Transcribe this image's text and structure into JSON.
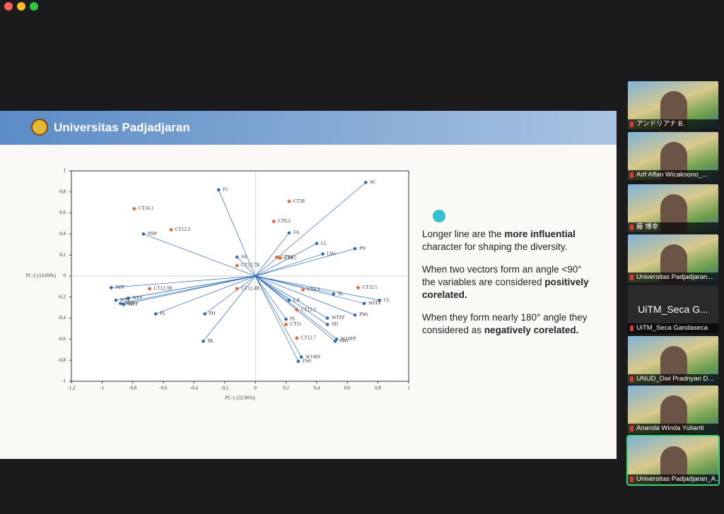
{
  "slide": {
    "header": "Universitas Padjadjaran",
    "paragraphs": [
      [
        {
          "text": "Longer line are the ",
          "bold": false
        },
        {
          "text": "more influential",
          "bold": true
        },
        {
          "text": " character for shaping the diversity.",
          "bold": false
        }
      ],
      [
        {
          "text": "When two vectors form an angle <90° the variables are considered ",
          "bold": false
        },
        {
          "text": "positively corelated.",
          "bold": true
        }
      ],
      [
        {
          "text": "When they form nearly 180° angle they considered as ",
          "bold": false
        },
        {
          "text": "negatively corelated.",
          "bold": true
        }
      ]
    ]
  },
  "chart_data": {
    "type": "scatter",
    "xlabel": "PC-1 (32.66%)",
    "ylabel": "PC-2 (14.89%)",
    "xlim": [
      -1.2,
      1
    ],
    "ylim": [
      -1,
      1
    ],
    "xticks": [
      {
        "value": -1.2,
        "label": "-1,2"
      },
      -1,
      {
        "value": -0.8,
        "label": "-0,8"
      },
      {
        "value": -0.6,
        "label": "-0,6"
      },
      {
        "value": -0.4,
        "label": "-0,4"
      },
      {
        "value": -0.2,
        "label": "-0,2"
      },
      0,
      {
        "value": 0.2,
        "label": "0,2"
      },
      {
        "value": 0.4,
        "label": "0,4"
      },
      {
        "value": 0.6,
        "label": "0,6"
      },
      {
        "value": 0.8,
        "label": "0,8"
      },
      1
    ],
    "yticks": [
      1,
      {
        "value": 0.8,
        "label": "0,8"
      },
      {
        "value": 0.6,
        "label": "0,6"
      },
      {
        "value": 0.4,
        "label": "0,4"
      },
      {
        "value": 0.2,
        "label": "0,2"
      },
      0,
      {
        "value": -0.2,
        "label": "-0,2"
      },
      {
        "value": -0.4,
        "label": "-0,4"
      },
      {
        "value": -0.6,
        "label": "-0,6"
      },
      {
        "value": -0.8,
        "label": "-0,8"
      },
      -1
    ],
    "series": [
      {
        "color": "#2e6cb5",
        "style": "vector",
        "marker": "circle",
        "labels": [
          "SC",
          "FC",
          "FA",
          "LL",
          "PN",
          "LWt",
          "NSP",
          "SS",
          "NPP",
          "WFP",
          "WTP",
          "NTP",
          "WPP",
          "PL",
          "PH",
          "NL",
          "CL",
          "SL",
          "WFFF",
          "PWt",
          "LA",
          "WTFF",
          "SD",
          "PL",
          "W10FP",
          "SWt",
          "W100S",
          "FWt"
        ],
        "x": [
          0.72,
          -0.24,
          0.22,
          0.4,
          0.65,
          0.44,
          -0.73,
          -0.12,
          -0.94,
          -0.83,
          -0.91,
          -0.88,
          -0.86,
          -0.65,
          -0.33,
          -0.34,
          0.81,
          0.51,
          0.71,
          0.65,
          0.22,
          0.47,
          0.47,
          0.2,
          0.53,
          0.52,
          0.3,
          0.28
        ],
        "values": [
          0.89,
          0.82,
          0.41,
          0.31,
          0.26,
          0.21,
          0.4,
          0.18,
          -0.11,
          -0.21,
          -0.23,
          -0.26,
          -0.27,
          -0.36,
          -0.36,
          -0.62,
          -0.23,
          -0.17,
          -0.26,
          -0.37,
          -0.23,
          -0.4,
          -0.46,
          -0.41,
          -0.6,
          -0.62,
          -0.77,
          -0.81
        ]
      },
      {
        "color": "#e07038",
        "style": "point",
        "marker": "diamond",
        "labels": [
          "CT24.1",
          "CT12.3",
          "CT38",
          "CT8.2",
          "CT12.7B",
          "CT9.5",
          "CT8.5",
          "CT12.4B",
          "CT12.3B",
          "CT4.3",
          "CT12.5",
          "CT12.2",
          "CT51",
          "CT12.7"
        ],
        "x": [
          -0.79,
          -0.55,
          0.22,
          0.12,
          -0.12,
          0.14,
          0.16,
          -0.12,
          -0.69,
          0.31,
          0.67,
          0.27,
          0.2,
          0.27
        ],
        "values": [
          0.64,
          0.44,
          0.71,
          0.52,
          0.1,
          0.18,
          0.17,
          -0.12,
          -0.12,
          -0.13,
          -0.11,
          -0.32,
          -0.46,
          -0.59
        ]
      }
    ]
  },
  "participants": [
    {
      "name": "アンドリアナ B."
    },
    {
      "name": "Arif Affan Wicaksono_..."
    },
    {
      "name": "藤 博幸"
    },
    {
      "name": "Universitas Padjadjaran..."
    },
    {
      "name": "UiTM_Seca Gandaseca",
      "display": "UiTM_Seca G..."
    },
    {
      "name": "UNUD_Dwi Pradnyan D..."
    },
    {
      "name": "Ananda Winda Yulianti"
    },
    {
      "name": "Universitas Padjadjaran_A..."
    }
  ]
}
